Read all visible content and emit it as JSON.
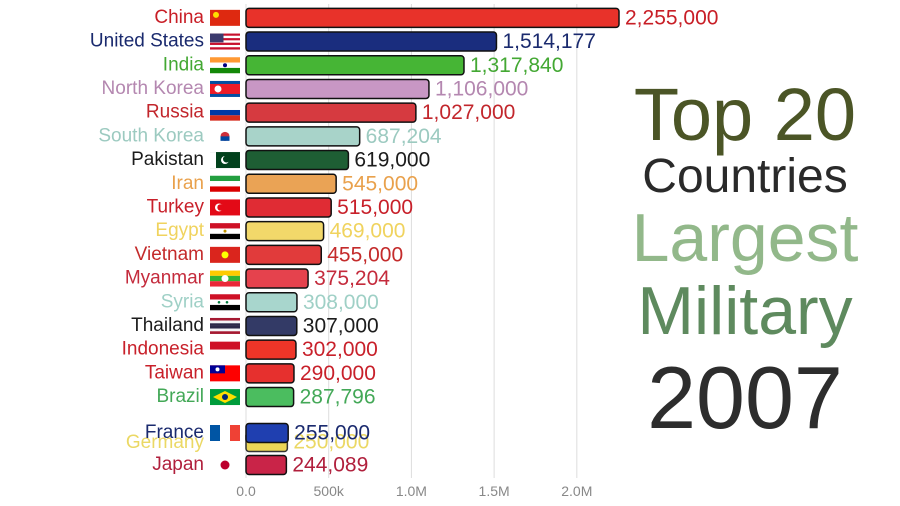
{
  "title": {
    "line1": "Top 20",
    "line2": "Countries",
    "line3": "Largest",
    "line4": "Military",
    "year": "2007"
  },
  "chart_data": {
    "type": "bar",
    "orientation": "horizontal",
    "categories": [
      "China",
      "United States",
      "India",
      "North Korea",
      "Russia",
      "South Korea",
      "Pakistan",
      "Iran",
      "Turkey",
      "Egypt",
      "Vietnam",
      "Myanmar",
      "Syria",
      "Thailand",
      "Indonesia",
      "Taiwan",
      "Brazil",
      "France",
      "Germany",
      "Japan"
    ],
    "values": [
      2255000,
      1514177,
      1317840,
      1106000,
      1027000,
      687204,
      619000,
      545000,
      515000,
      469000,
      455000,
      375204,
      308000,
      307000,
      302000,
      290000,
      287796,
      255000,
      250000,
      244089
    ],
    "value_labels": [
      "2,255,000",
      "1,514,177",
      "1,317,840",
      "1,106,000",
      "1,027,000",
      "687,204",
      "619,000",
      "545,000",
      "515,000",
      "469,000",
      "455,000",
      "375,204",
      "308,000",
      "307,000",
      "302,000",
      "290,000",
      "287,796",
      "255,000",
      "250,000",
      "244,089"
    ],
    "colors": [
      "#e8322a",
      "#1a2d7e",
      "#46b535",
      "#c897c4",
      "#d63a40",
      "#a8d3c9",
      "#1e5e34",
      "#eaa355",
      "#e02c34",
      "#f2d86a",
      "#e13b3b",
      "#e5424d",
      "#a8d6cd",
      "#333a66",
      "#ee3528",
      "#e6302e",
      "#4bbd5f",
      "#1f3fb0",
      "#e8cf3a",
      "#c92448"
    ],
    "label_colors": [
      "#c81e26",
      "#1a2a6e",
      "#43a833",
      "#b487b0",
      "#c2262c",
      "#9ccac0",
      "#1c1c1c",
      "#e9a14c",
      "#c8202a",
      "#f0d35e",
      "#c42b2b",
      "#c42b3c",
      "#9fd0c6",
      "#1c1c1c",
      "#c8202a",
      "#c8202a",
      "#43a857",
      "#1a2a6e",
      "#e8d24a",
      "#b01f3c"
    ],
    "x_ticks": [
      0,
      500000,
      1000000,
      1500000,
      2000000
    ],
    "x_tick_labels": [
      "0.0",
      "500k",
      "1.0M",
      "1.5M",
      "2.0M"
    ],
    "xlim": [
      0,
      2300000
    ],
    "grid": true,
    "flag_icons": [
      "china-flag-icon",
      "usa-flag-icon",
      "india-flag-icon",
      "north-korea-flag-icon",
      "russia-flag-icon",
      "south-korea-flag-icon",
      "pakistan-flag-icon",
      "iran-flag-icon",
      "turkey-flag-icon",
      "egypt-flag-icon",
      "vietnam-flag-icon",
      "myanmar-flag-icon",
      "syria-flag-icon",
      "thailand-flag-icon",
      "indonesia-flag-icon",
      "taiwan-flag-icon",
      "brazil-flag-icon",
      "france-flag-icon",
      "germany-flag-icon",
      "japan-flag-icon"
    ]
  }
}
